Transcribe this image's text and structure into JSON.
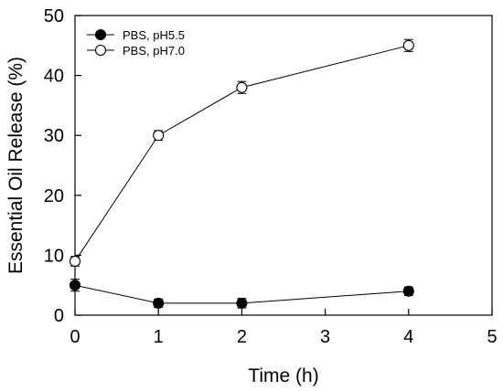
{
  "chart_data": {
    "type": "line",
    "xlabel": "Time (h)",
    "ylabel": "Essential Oil Release (%)",
    "xlim": [
      0,
      5
    ],
    "ylim": [
      0,
      50
    ],
    "x_ticks": [
      "0",
      "1",
      "2",
      "3",
      "4",
      "5"
    ],
    "y_ticks": [
      "0",
      "10",
      "20",
      "30",
      "40",
      "50"
    ],
    "grid": false,
    "legend_position": "top-left",
    "series": [
      {
        "name": "PBS, pH5.5",
        "marker": "filled-circle",
        "color": "#000000",
        "points": [
          {
            "x": 0,
            "y": 5.0,
            "err": 1.0
          },
          {
            "x": 1,
            "y": 2.0,
            "err": 0.7
          },
          {
            "x": 2,
            "y": 2.0,
            "err": 0.8
          },
          {
            "x": 4,
            "y": 4.0,
            "err": 0.7
          }
        ]
      },
      {
        "name": "PBS, pH7.0",
        "marker": "open-circle",
        "color": "#000000",
        "points": [
          {
            "x": 0,
            "y": 9.0,
            "err": 0.8
          },
          {
            "x": 1,
            "y": 30.0,
            "err": 0.8
          },
          {
            "x": 2,
            "y": 38.0,
            "err": 1.0
          },
          {
            "x": 4,
            "y": 45.0,
            "err": 1.0
          }
        ]
      }
    ]
  }
}
